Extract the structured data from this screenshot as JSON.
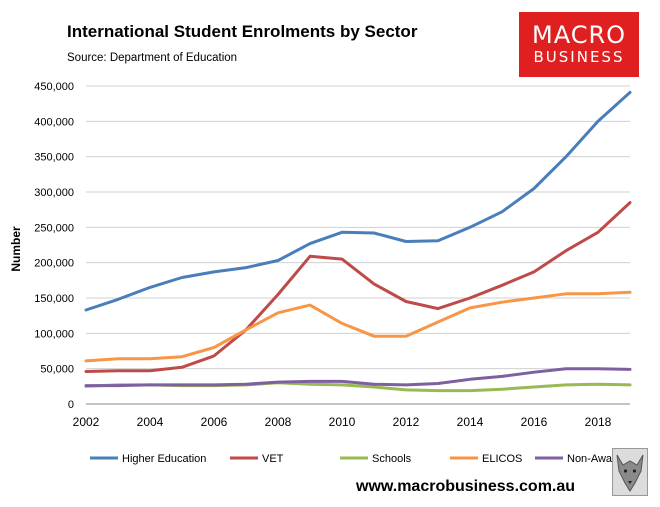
{
  "header": {
    "title": "International Student Enrolments by Sector",
    "source": "Source: Department of Education"
  },
  "logo": {
    "line1": "MACRO",
    "line2": "BUSINESS"
  },
  "footer": {
    "url": "www.macrobusiness.com.au"
  },
  "colors": {
    "Higher Education": "#4a7ebb",
    "VET": "#be4b48",
    "Schools": "#98b954",
    "ELICOS": "#f79646",
    "Non-Award": "#7d60a0"
  },
  "chart_data": {
    "type": "line",
    "title": "International Student Enrolments by Sector",
    "xlabel": "",
    "ylabel": "Number",
    "x": [
      2002,
      2003,
      2004,
      2005,
      2006,
      2007,
      2008,
      2009,
      2010,
      2011,
      2012,
      2013,
      2014,
      2015,
      2016,
      2017,
      2018,
      2019
    ],
    "xlim": [
      2002,
      2019
    ],
    "ylim": [
      0,
      450000
    ],
    "xticks": [
      2002,
      2004,
      2006,
      2008,
      2010,
      2012,
      2014,
      2016,
      2018
    ],
    "yticks": [
      0,
      50000,
      100000,
      150000,
      200000,
      250000,
      300000,
      350000,
      400000,
      450000
    ],
    "ytick_labels": [
      "0",
      "50,000",
      "100,000",
      "150,000",
      "200,000",
      "250,000",
      "300,000",
      "350,000",
      "400,000",
      "450,000"
    ],
    "grid": "horizontal",
    "legend": "bottom",
    "series": [
      {
        "name": "Higher Education",
        "values": [
          133000,
          148000,
          165000,
          179000,
          187000,
          193000,
          203000,
          227000,
          243000,
          242000,
          230000,
          231000,
          250000,
          272000,
          305000,
          350000,
          400000,
          441000
        ]
      },
      {
        "name": "VET",
        "values": [
          46000,
          47000,
          47000,
          52000,
          68000,
          105000,
          155000,
          209000,
          205000,
          170000,
          145000,
          135000,
          150000,
          168000,
          187000,
          217000,
          243000,
          285000
        ]
      },
      {
        "name": "Schools",
        "values": [
          25000,
          27000,
          27000,
          26000,
          26000,
          27000,
          30000,
          28000,
          27000,
          24000,
          20000,
          19000,
          19000,
          21000,
          24000,
          27000,
          28000,
          27000
        ]
      },
      {
        "name": "ELICOS",
        "values": [
          61000,
          64000,
          64000,
          67000,
          80000,
          105000,
          129000,
          140000,
          114000,
          96000,
          96000,
          116000,
          136000,
          144000,
          150000,
          156000,
          156000,
          158000
        ]
      },
      {
        "name": "Non-Award",
        "values": [
          26000,
          26000,
          27000,
          27000,
          27000,
          28000,
          31000,
          32000,
          32000,
          28000,
          27000,
          29000,
          35000,
          39000,
          45000,
          50000,
          50000,
          49000
        ]
      }
    ]
  }
}
